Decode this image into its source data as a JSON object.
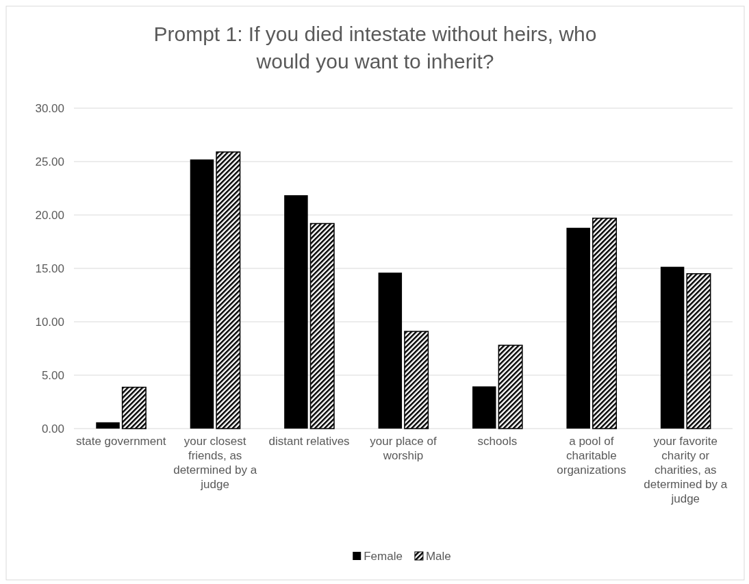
{
  "chart_data": {
    "type": "bar",
    "title": "Prompt 1: If you died intestate without heirs, who would you want to inherit?",
    "categories": [
      "state government",
      "your closest friends, as determined by a judge",
      "distant relatives",
      "your place of worship",
      "schools",
      "a pool of charitable organizations",
      "your favorite charity or charities, as determined by a judge"
    ],
    "series": [
      {
        "name": "Female",
        "color": "#000000",
        "values": [
          0.59,
          25.2,
          21.85,
          14.6,
          3.95,
          18.8,
          15.15
        ]
      },
      {
        "name": "Male",
        "color": "#000000",
        "values": [
          3.87,
          25.9,
          19.2,
          9.1,
          7.8,
          19.7,
          14.5
        ]
      }
    ],
    "ylim": [
      0,
      30
    ],
    "yticks": [
      {
        "value": 0,
        "label": "0.00"
      },
      {
        "value": 5,
        "label": "5.00"
      },
      {
        "value": 10,
        "label": "10.00"
      },
      {
        "value": 15,
        "label": "15.00"
      },
      {
        "value": 20,
        "label": "20.00"
      },
      {
        "value": 25,
        "label": "25.00"
      },
      {
        "value": 30,
        "label": "30.00"
      }
    ],
    "grid": "y",
    "legend": "bottom"
  }
}
